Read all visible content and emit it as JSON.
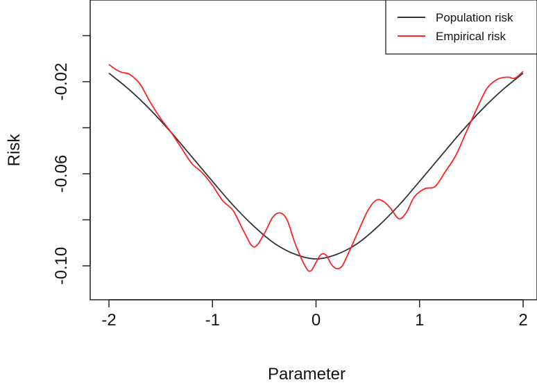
{
  "chart_data": {
    "type": "line",
    "title": "",
    "xlabel": "Parameter",
    "ylabel": "Risk",
    "xlim": [
      -2.05,
      2.05
    ],
    "ylim": [
      -0.115,
      0.005
    ],
    "grid": false,
    "legend_position": "top-right",
    "x_ticks": [
      -2,
      -1,
      0,
      1,
      2
    ],
    "x_tick_labels": [
      "-2",
      "-1",
      "0",
      "1",
      "2"
    ],
    "y_ticks": [
      -0.1,
      -0.06,
      -0.02
    ],
    "y_tick_labels": [
      "-0.10",
      "-0.06",
      "-0.02"
    ],
    "series": [
      {
        "name": "Population risk",
        "color": "#333333",
        "x": [
          -2.0,
          -1.8,
          -1.6,
          -1.4,
          -1.2,
          -1.0,
          -0.8,
          -0.6,
          -0.4,
          -0.2,
          0.0,
          0.2,
          0.4,
          0.6,
          0.8,
          1.0,
          1.2,
          1.4,
          1.6,
          1.8,
          2.0
        ],
        "y": [
          -0.0163,
          -0.0236,
          -0.0322,
          -0.042,
          -0.0526,
          -0.0633,
          -0.0737,
          -0.0828,
          -0.0903,
          -0.095,
          -0.097,
          -0.095,
          -0.0903,
          -0.0828,
          -0.0737,
          -0.0633,
          -0.0526,
          -0.042,
          -0.0322,
          -0.0236,
          -0.0163
        ]
      },
      {
        "name": "Empirical risk",
        "color": "#ff2020",
        "x": [
          -2.0,
          -1.93,
          -1.87,
          -1.8,
          -1.7,
          -1.6,
          -1.5,
          -1.4,
          -1.3,
          -1.2,
          -1.1,
          -1.0,
          -0.9,
          -0.8,
          -0.7,
          -0.6,
          -0.5,
          -0.42,
          -0.35,
          -0.28,
          -0.2,
          -0.1,
          -0.05,
          0.0,
          0.05,
          0.1,
          0.15,
          0.2,
          0.25,
          0.3,
          0.4,
          0.5,
          0.58,
          0.65,
          0.72,
          0.8,
          0.87,
          0.95,
          1.05,
          1.15,
          1.25,
          1.35,
          1.45,
          1.55,
          1.65,
          1.75,
          1.85,
          1.92,
          2.0
        ],
        "y": [
          -0.0125,
          -0.0148,
          -0.016,
          -0.0168,
          -0.021,
          -0.029,
          -0.036,
          -0.042,
          -0.0488,
          -0.0555,
          -0.0595,
          -0.065,
          -0.0718,
          -0.076,
          -0.0848,
          -0.0918,
          -0.086,
          -0.079,
          -0.077,
          -0.08,
          -0.0905,
          -0.1005,
          -0.1022,
          -0.0985,
          -0.095,
          -0.0955,
          -0.0995,
          -0.1012,
          -0.1002,
          -0.0958,
          -0.0858,
          -0.076,
          -0.0715,
          -0.072,
          -0.075,
          -0.0795,
          -0.077,
          -0.07,
          -0.0665,
          -0.0655,
          -0.059,
          -0.052,
          -0.042,
          -0.032,
          -0.023,
          -0.019,
          -0.018,
          -0.0185,
          -0.0155
        ]
      }
    ]
  }
}
